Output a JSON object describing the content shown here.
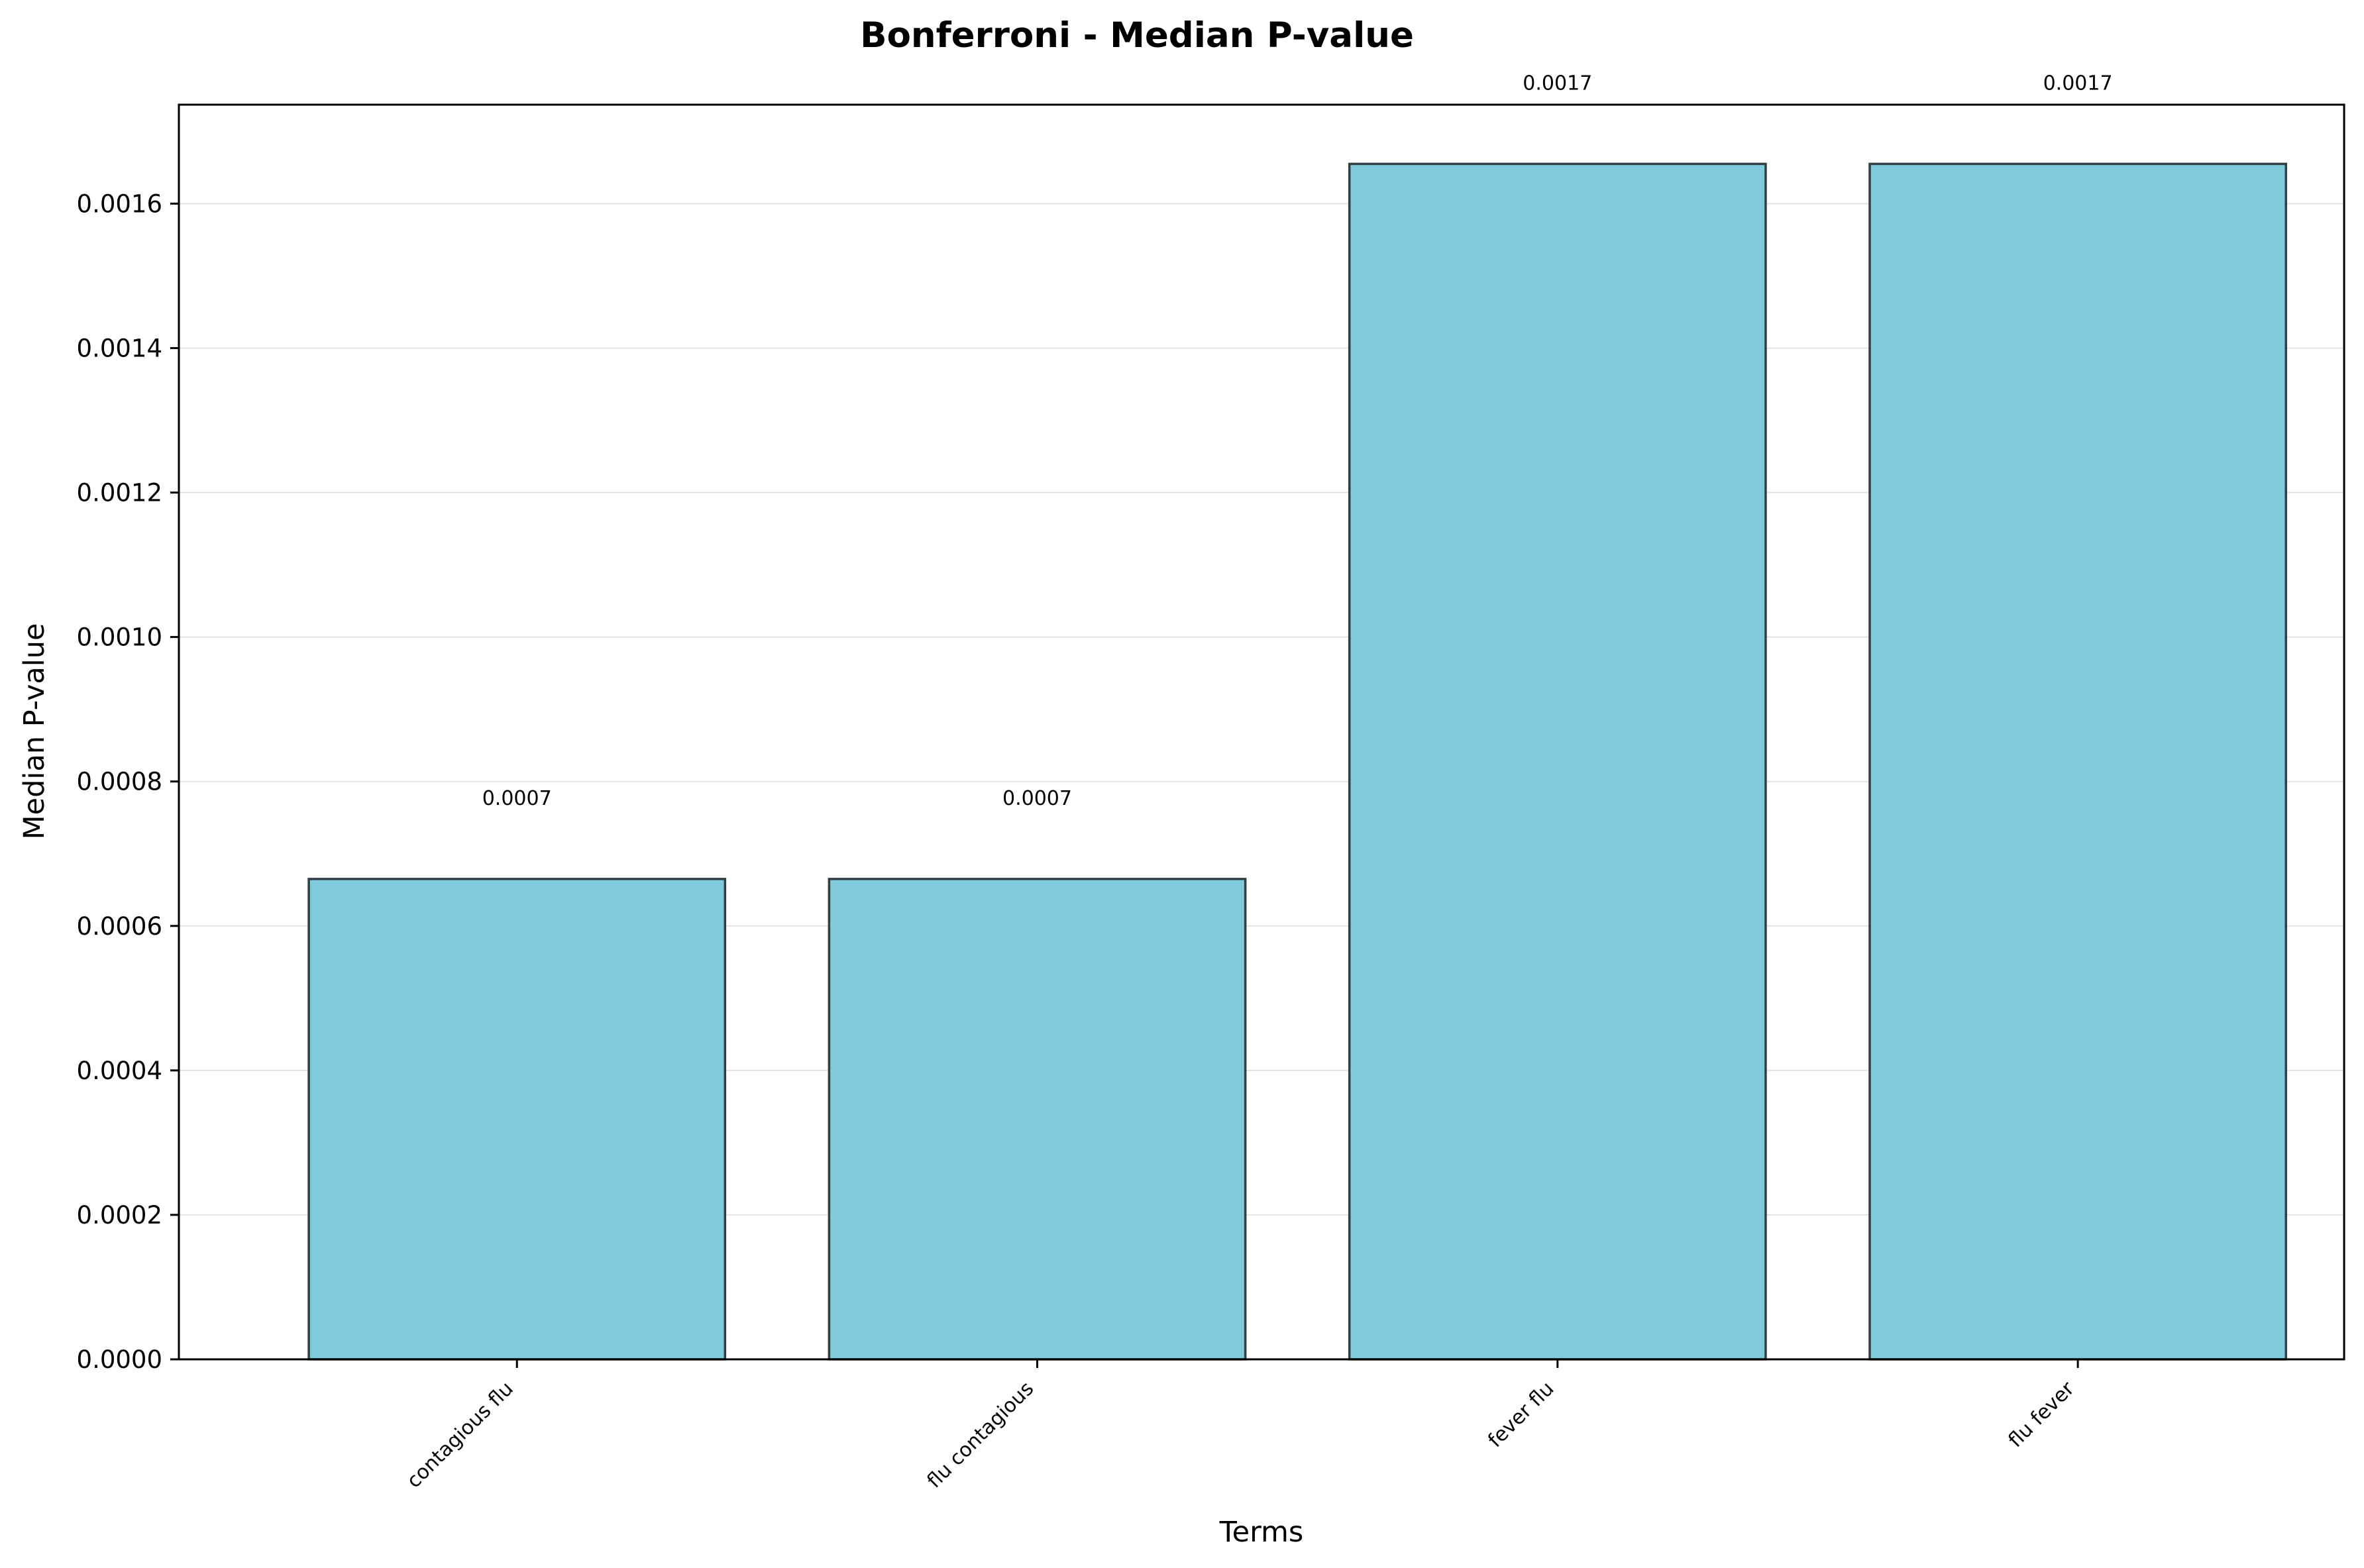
{
  "chart_data": {
    "type": "bar",
    "title": "Bonferroni - Median P-value",
    "xlabel": "Terms",
    "ylabel": "Median P-value",
    "categories": [
      "contagious flu",
      "flu contagious",
      "fever flu",
      "flu fever"
    ],
    "values": [
      0.000665,
      0.000665,
      0.001655,
      0.001655
    ],
    "value_labels": [
      "0.0007",
      "0.0007",
      "0.0017",
      "0.0017"
    ],
    "ylim": [
      0,
      0.001737
    ],
    "yticks": [
      0,
      0.0002,
      0.0004,
      0.0006,
      0.0008,
      0.001,
      0.0012,
      0.0014,
      0.0016
    ],
    "ytick_labels": [
      "0.0000",
      "0.0002",
      "0.0004",
      "0.0006",
      "0.0008",
      "0.0010",
      "0.0012",
      "0.0014",
      "0.0016"
    ],
    "grid": "y",
    "legend": "none",
    "colors": {
      "bar_fill": "#7fcadb",
      "bar_edge": "#2f3f44",
      "grid": "#e3e3e3",
      "axis": "#000000"
    }
  }
}
